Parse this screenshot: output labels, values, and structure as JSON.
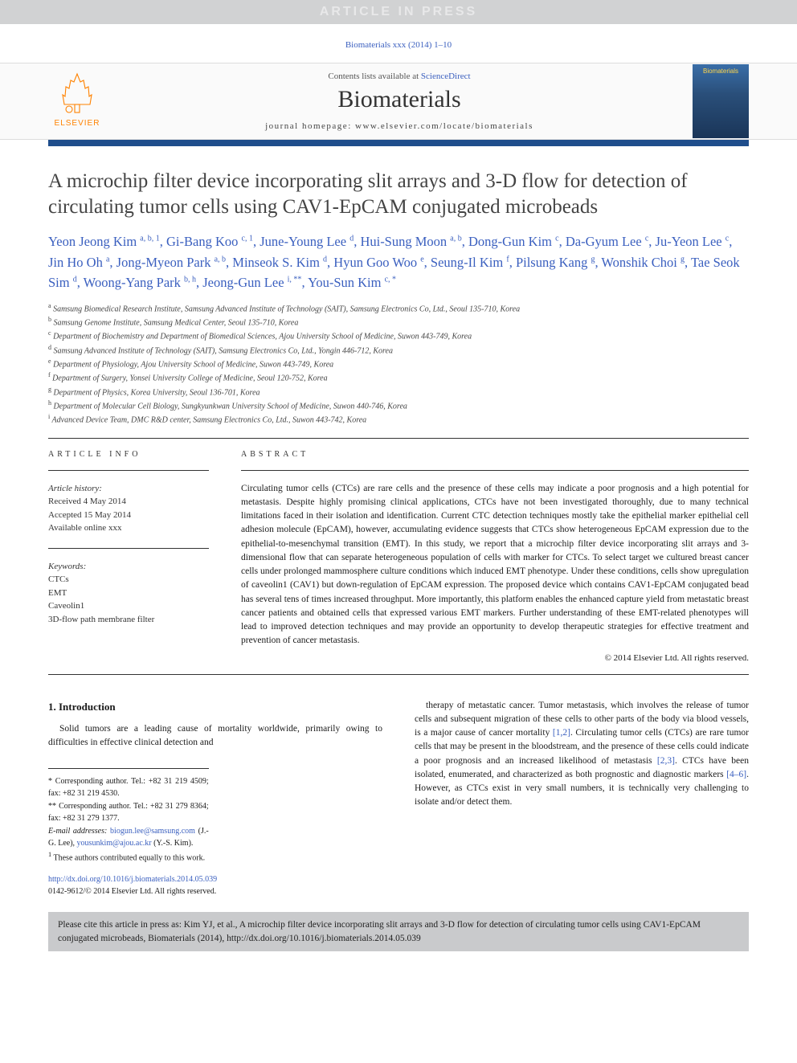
{
  "banner": "ARTICLE IN PRESS",
  "citation_header": "Biomaterials xxx (2014) 1–10",
  "masthead": {
    "contents_prefix": "Contents lists available at ",
    "contents_link": "ScienceDirect",
    "journal": "Biomaterials",
    "homepage_prefix": "journal homepage: ",
    "homepage": "www.elsevier.com/locate/biomaterials",
    "publisher": "ELSEVIER",
    "cover_title": "Biomaterials"
  },
  "colors": {
    "banner_bg": "#d1d2d3",
    "banner_fg": "#e8e8e9",
    "blue_bar": "#1f4e8c",
    "link": "#3a5fbf",
    "elsevier_orange": "#ff8200",
    "cite_box_bg": "#c9cacc"
  },
  "title": "A microchip filter device incorporating slit arrays and 3-D flow for detection of circulating tumor cells using CAV1-EpCAM conjugated microbeads",
  "authors_html": "Yeon Jeong Kim <sup>a, b, 1</sup>, Gi-Bang Koo <sup>c, 1</sup>, June-Young Lee <sup>d</sup>, Hui-Sung Moon <sup>a, b</sup>, Dong-Gun Kim <sup>c</sup>, Da-Gyum Lee <sup>c</sup>, Ju-Yeon Lee <sup>c</sup>, Jin Ho Oh <sup>a</sup>, Jong-Myeon Park <sup>a, b</sup>, Minseok S. Kim <sup>d</sup>, Hyun Goo Woo <sup>e</sup>, Seung-Il Kim <sup>f</sup>, Pilsung Kang <sup>g</sup>, Wonshik Choi <sup>g</sup>, Tae Seok Sim <sup>d</sup>, Woong-Yang Park <sup>b, h</sup>, Jeong-Gun Lee <sup>i, **</sup>, You-Sun Kim <sup>c, *</sup>",
  "affiliations": [
    {
      "key": "a",
      "text": "Samsung Biomedical Research Institute, Samsung Advanced Institute of Technology (SAIT), Samsung Electronics Co, Ltd., Seoul 135-710, Korea"
    },
    {
      "key": "b",
      "text": "Samsung Genome Institute, Samsung Medical Center, Seoul 135-710, Korea"
    },
    {
      "key": "c",
      "text": "Department of Biochemistry and Department of Biomedical Sciences, Ajou University School of Medicine, Suwon 443-749, Korea"
    },
    {
      "key": "d",
      "text": "Samsung Advanced Institute of Technology (SAIT), Samsung Electronics Co, Ltd., Yongin 446-712, Korea"
    },
    {
      "key": "e",
      "text": "Department of Physiology, Ajou University School of Medicine, Suwon 443-749, Korea"
    },
    {
      "key": "f",
      "text": "Department of Surgery, Yonsei University College of Medicine, Seoul 120-752, Korea"
    },
    {
      "key": "g",
      "text": "Department of Physics, Korea University, Seoul 136-701, Korea"
    },
    {
      "key": "h",
      "text": "Department of Molecular Cell Biology, Sungkyunkwan University School of Medicine, Suwon 440-746, Korea"
    },
    {
      "key": "i",
      "text": "Advanced Device Team, DMC R&D center, Samsung Electronics Co, Ltd., Suwon 443-742, Korea"
    }
  ],
  "article_info": {
    "label": "ARTICLE INFO",
    "history_hdr": "Article history:",
    "received": "Received 4 May 2014",
    "accepted": "Accepted 15 May 2014",
    "online": "Available online xxx",
    "keywords_hdr": "Keywords:",
    "keywords": [
      "CTCs",
      "EMT",
      "Caveolin1",
      "3D-flow path membrane filter"
    ]
  },
  "abstract": {
    "label": "ABSTRACT",
    "text": "Circulating tumor cells (CTCs) are rare cells and the presence of these cells may indicate a poor prognosis and a high potential for metastasis. Despite highly promising clinical applications, CTCs have not been investigated thoroughly, due to many technical limitations faced in their isolation and identification. Current CTC detection techniques mostly take the epithelial marker epithelial cell adhesion molecule (EpCAM), however, accumulating evidence suggests that CTCs show heterogeneous EpCAM expression due to the epithelial-to-mesenchymal transition (EMT). In this study, we report that a microchip filter device incorporating slit arrays and 3-dimensional flow that can separate heterogeneous population of cells with marker for CTCs. To select target we cultured breast cancer cells under prolonged mammosphere culture conditions which induced EMT phenotype. Under these conditions, cells show upregulation of caveolin1 (CAV1) but down-regulation of EpCAM expression. The proposed device which contains CAV1-EpCAM conjugated bead has several tens of times increased throughput. More importantly, this platform enables the enhanced capture yield from metastatic breast cancer patients and obtained cells that expressed various EMT markers. Further understanding of these EMT-related phenotypes will lead to improved detection techniques and may provide an opportunity to develop therapeutic strategies for effective treatment and prevention of cancer metastasis.",
    "copyright": "© 2014 Elsevier Ltd. All rights reserved."
  },
  "intro": {
    "heading": "1. Introduction",
    "col1": "Solid tumors are a leading cause of mortality worldwide, primarily owing to difficulties in effective clinical detection and",
    "col2_pre": "therapy of metastatic cancer. Tumor metastasis, which involves the release of tumor cells and subsequent migration of these cells to other parts of the body via blood vessels, is a major cause of cancer mortality ",
    "ref12": "[1,2]",
    "col2_mid": ". Circulating tumor cells (CTCs) are rare tumor cells that may be present in the bloodstream, and the presence of these cells could indicate a poor prognosis and an increased likelihood of metastasis ",
    "ref23": "[2,3]",
    "col2_mid2": ". CTCs have been isolated, enumerated, and characterized as both prognostic and diagnostic markers ",
    "ref46": "[4–6]",
    "col2_post": ". However, as CTCs exist in very small numbers, it is technically very challenging to isolate and/or detect them."
  },
  "footnotes": {
    "corr1": "* Corresponding author. Tel.: +82 31 219 4509; fax: +82 31 219 4530.",
    "corr2": "** Corresponding author. Tel.: +82 31 279 8364; fax: +82 31 279 1377.",
    "email_label": "E-mail addresses: ",
    "email1": "biogun.lee@samsung.com",
    "email1_who": " (J.-G. Lee), ",
    "email2": "yousunkim@ajou.ac.kr",
    "email2_who": " (Y.-S. Kim).",
    "equal": "These authors contributed equally to this work.",
    "equal_sup": "1"
  },
  "doi": {
    "url": "http://dx.doi.org/10.1016/j.biomaterials.2014.05.039",
    "copyright": "0142-9612/© 2014 Elsevier Ltd. All rights reserved."
  },
  "cite_box": "Please cite this article in press as: Kim YJ, et al., A microchip filter device incorporating slit arrays and 3-D flow for detection of circulating tumor cells using CAV1-EpCAM conjugated microbeads, Biomaterials (2014), http://dx.doi.org/10.1016/j.biomaterials.2014.05.039"
}
